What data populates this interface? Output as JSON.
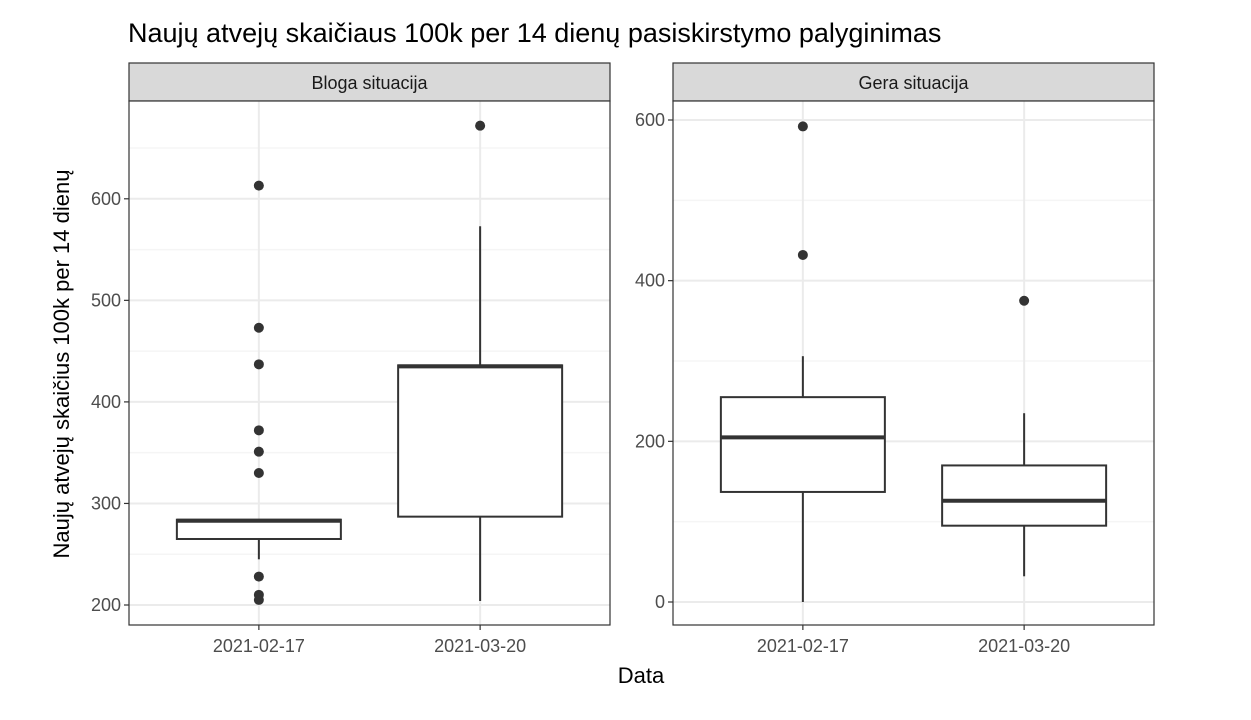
{
  "colors": {
    "strip_fill": "#d9d9d9",
    "panel_border": "#333333",
    "grid_major": "#ebebeb",
    "grid_minor": "#f5f5f5",
    "box_line": "#333333",
    "tick_text": "#4d4d4d",
    "text": "#000000"
  },
  "chart_data": {
    "type": "boxplot",
    "title": "Naujų atvejų skaičiaus 100k per 14 dienų pasiskirstymo palyginimas",
    "xlabel": "Data",
    "ylabel": "Naujų atvejų skaičius 100k per 14 dienų",
    "categories": [
      "2021-02-17",
      "2021-03-20"
    ],
    "panels": [
      {
        "strip": "Bloga situacija",
        "ylim": [
          180,
          700
        ],
        "yticks": [
          200,
          300,
          400,
          500,
          600
        ],
        "ytick_labels": [
          "200",
          "300",
          "400",
          "500",
          "600"
        ],
        "yminor": [
          250,
          350,
          450,
          550,
          650
        ],
        "boxes": [
          {
            "category": "2021-02-17",
            "lower_whisker": 245,
            "q1": 265,
            "median": 283,
            "q3": 284,
            "upper_whisker": 284,
            "outliers": [
              613,
              473,
              437,
              372,
              351,
              330,
              228,
              210,
              205
            ]
          },
          {
            "category": "2021-03-20",
            "lower_whisker": 204,
            "q1": 287,
            "median": 435,
            "q3": 436,
            "upper_whisker": 573,
            "outliers": [
              672
            ]
          }
        ]
      },
      {
        "strip": "Gera situacija",
        "ylim": [
          -30,
          630
        ],
        "yticks": [
          0,
          200,
          400,
          600
        ],
        "ytick_labels": [
          "0",
          "200",
          "400",
          "600"
        ],
        "yminor": [
          100,
          300,
          500
        ],
        "boxes": [
          {
            "category": "2021-02-17",
            "lower_whisker": 0,
            "q1": 137,
            "median": 205,
            "q3": 255,
            "upper_whisker": 306,
            "outliers": [
              592,
              432
            ]
          },
          {
            "category": "2021-03-20",
            "lower_whisker": 32,
            "q1": 95,
            "median": 126,
            "q3": 170,
            "upper_whisker": 235,
            "outliers": [
              375
            ]
          }
        ]
      }
    ]
  }
}
